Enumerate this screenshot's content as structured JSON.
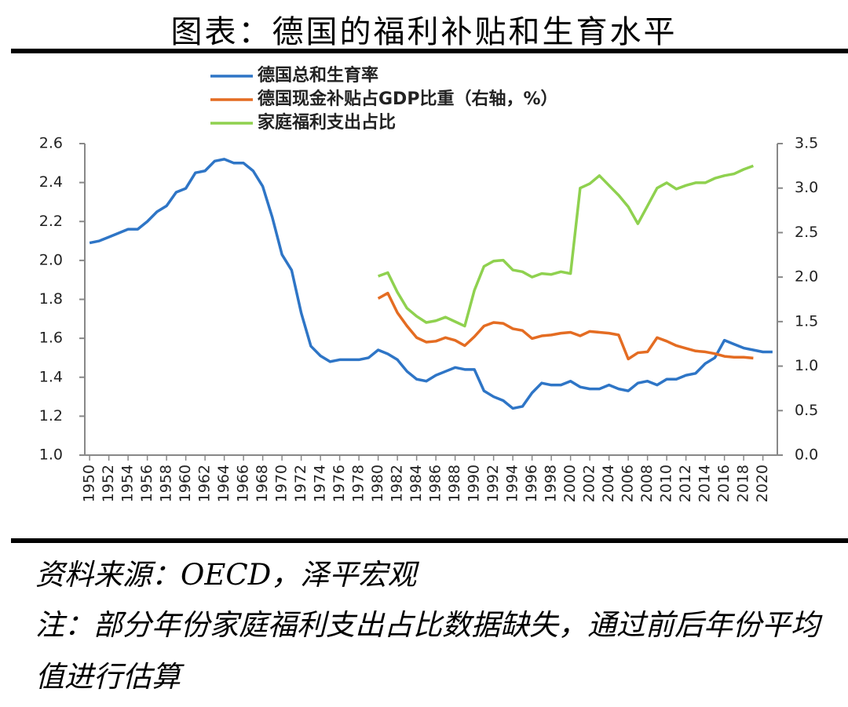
{
  "title": "图表：德国的福利补贴和生育水平",
  "chart_data": {
    "type": "line",
    "x": [
      1950,
      1951,
      1952,
      1953,
      1954,
      1955,
      1956,
      1957,
      1958,
      1959,
      1960,
      1961,
      1962,
      1963,
      1964,
      1965,
      1966,
      1967,
      1968,
      1969,
      1970,
      1971,
      1972,
      1973,
      1974,
      1975,
      1976,
      1977,
      1978,
      1979,
      1980,
      1981,
      1982,
      1983,
      1984,
      1985,
      1986,
      1987,
      1988,
      1989,
      1990,
      1991,
      1992,
      1993,
      1994,
      1995,
      1996,
      1997,
      1998,
      1999,
      2000,
      2001,
      2002,
      2003,
      2004,
      2005,
      2006,
      2007,
      2008,
      2009,
      2010,
      2011,
      2012,
      2013,
      2014,
      2015,
      2016,
      2017,
      2018,
      2019,
      2020,
      2021
    ],
    "xlim": [
      1949.5,
      2021.5
    ],
    "xticks": [
      1950,
      1952,
      1954,
      1956,
      1958,
      1960,
      1962,
      1964,
      1966,
      1968,
      1970,
      1972,
      1974,
      1976,
      1978,
      1980,
      1982,
      1984,
      1986,
      1988,
      1990,
      1992,
      1994,
      1996,
      1998,
      2000,
      2002,
      2004,
      2006,
      2008,
      2010,
      2012,
      2014,
      2016,
      2018,
      2020
    ],
    "ylim": [
      1.0,
      2.6
    ],
    "yticks": [
      {
        "value": 1,
        "label": "1.0"
      },
      1.2,
      1.4,
      1.6,
      1.8,
      {
        "value": 2,
        "label": "2.0"
      },
      2.2,
      2.4,
      2.6
    ],
    "y2lim": [
      0,
      3.5
    ],
    "y2ticks": [
      {
        "value": 0,
        "label": "0.0"
      },
      0.5,
      {
        "value": 1,
        "label": "1.0"
      },
      1.5,
      {
        "value": 2,
        "label": "2.0"
      },
      2.5,
      {
        "value": 3,
        "label": "3.0"
      },
      3.5
    ],
    "legend": "upper left",
    "series": [
      {
        "name": "德国总和生育率",
        "color": "#2e75c6",
        "values": [
          2.09,
          2.1,
          2.12,
          2.14,
          2.16,
          2.16,
          2.2,
          2.25,
          2.28,
          2.35,
          2.37,
          2.45,
          2.46,
          2.51,
          2.52,
          2.5,
          2.5,
          2.46,
          2.38,
          2.22,
          2.03,
          1.95,
          1.73,
          1.56,
          1.51,
          1.48,
          1.49,
          1.49,
          1.49,
          1.5,
          1.54,
          1.52,
          1.49,
          1.43,
          1.39,
          1.38,
          1.41,
          1.43,
          1.45,
          1.44,
          1.44,
          1.33,
          1.3,
          1.28,
          1.24,
          1.25,
          1.32,
          1.37,
          1.36,
          1.36,
          1.38,
          1.35,
          1.34,
          1.34,
          1.36,
          1.34,
          1.33,
          1.37,
          1.38,
          1.36,
          1.39,
          1.39,
          1.41,
          1.42,
          1.47,
          1.5,
          1.59,
          1.57,
          1.55,
          1.54,
          1.53,
          1.53
        ]
      },
      {
        "name": "德国现金补贴占GDP比重（右轴，%）",
        "color": "#e46c22",
        "axis": "y2",
        "values": [
          null,
          null,
          null,
          null,
          null,
          null,
          null,
          null,
          null,
          null,
          null,
          null,
          null,
          null,
          null,
          null,
          null,
          null,
          null,
          null,
          null,
          null,
          null,
          null,
          null,
          null,
          null,
          null,
          null,
          null,
          1.76,
          1.82,
          1.6,
          1.45,
          1.32,
          1.27,
          1.28,
          1.32,
          1.29,
          1.23,
          1.33,
          1.45,
          1.49,
          1.48,
          1.42,
          1.4,
          1.31,
          1.34,
          1.35,
          1.37,
          1.38,
          1.34,
          1.39,
          1.38,
          1.37,
          1.35,
          1.08,
          1.15,
          1.16,
          1.32,
          1.28,
          1.23,
          1.2,
          1.17,
          1.16,
          1.14,
          1.11,
          1.1,
          1.1,
          1.09,
          null,
          null
        ]
      },
      {
        "name": "家庭福利支出占比",
        "color": "#8fd14f",
        "axis": "y2",
        "values": [
          null,
          null,
          null,
          null,
          null,
          null,
          null,
          null,
          null,
          null,
          null,
          null,
          null,
          null,
          null,
          null,
          null,
          null,
          null,
          null,
          null,
          null,
          null,
          null,
          null,
          null,
          null,
          null,
          null,
          null,
          2.01,
          2.05,
          1.83,
          1.65,
          1.56,
          1.49,
          1.51,
          1.55,
          1.5,
          1.45,
          1.85,
          2.12,
          2.18,
          2.19,
          2.08,
          2.06,
          2.0,
          2.04,
          2.03,
          2.06,
          2.04,
          3.0,
          3.05,
          3.14,
          3.03,
          2.92,
          2.79,
          2.6,
          2.8,
          3.0,
          3.06,
          2.99,
          3.03,
          3.06,
          3.06,
          3.11,
          3.14,
          3.16,
          3.21,
          3.25,
          null,
          null
        ]
      }
    ]
  },
  "source": "资料来源：OECD，泽平宏观",
  "note": "注：部分年份家庭福利支出占比数据缺失，通过前后年份平均值进行估算"
}
